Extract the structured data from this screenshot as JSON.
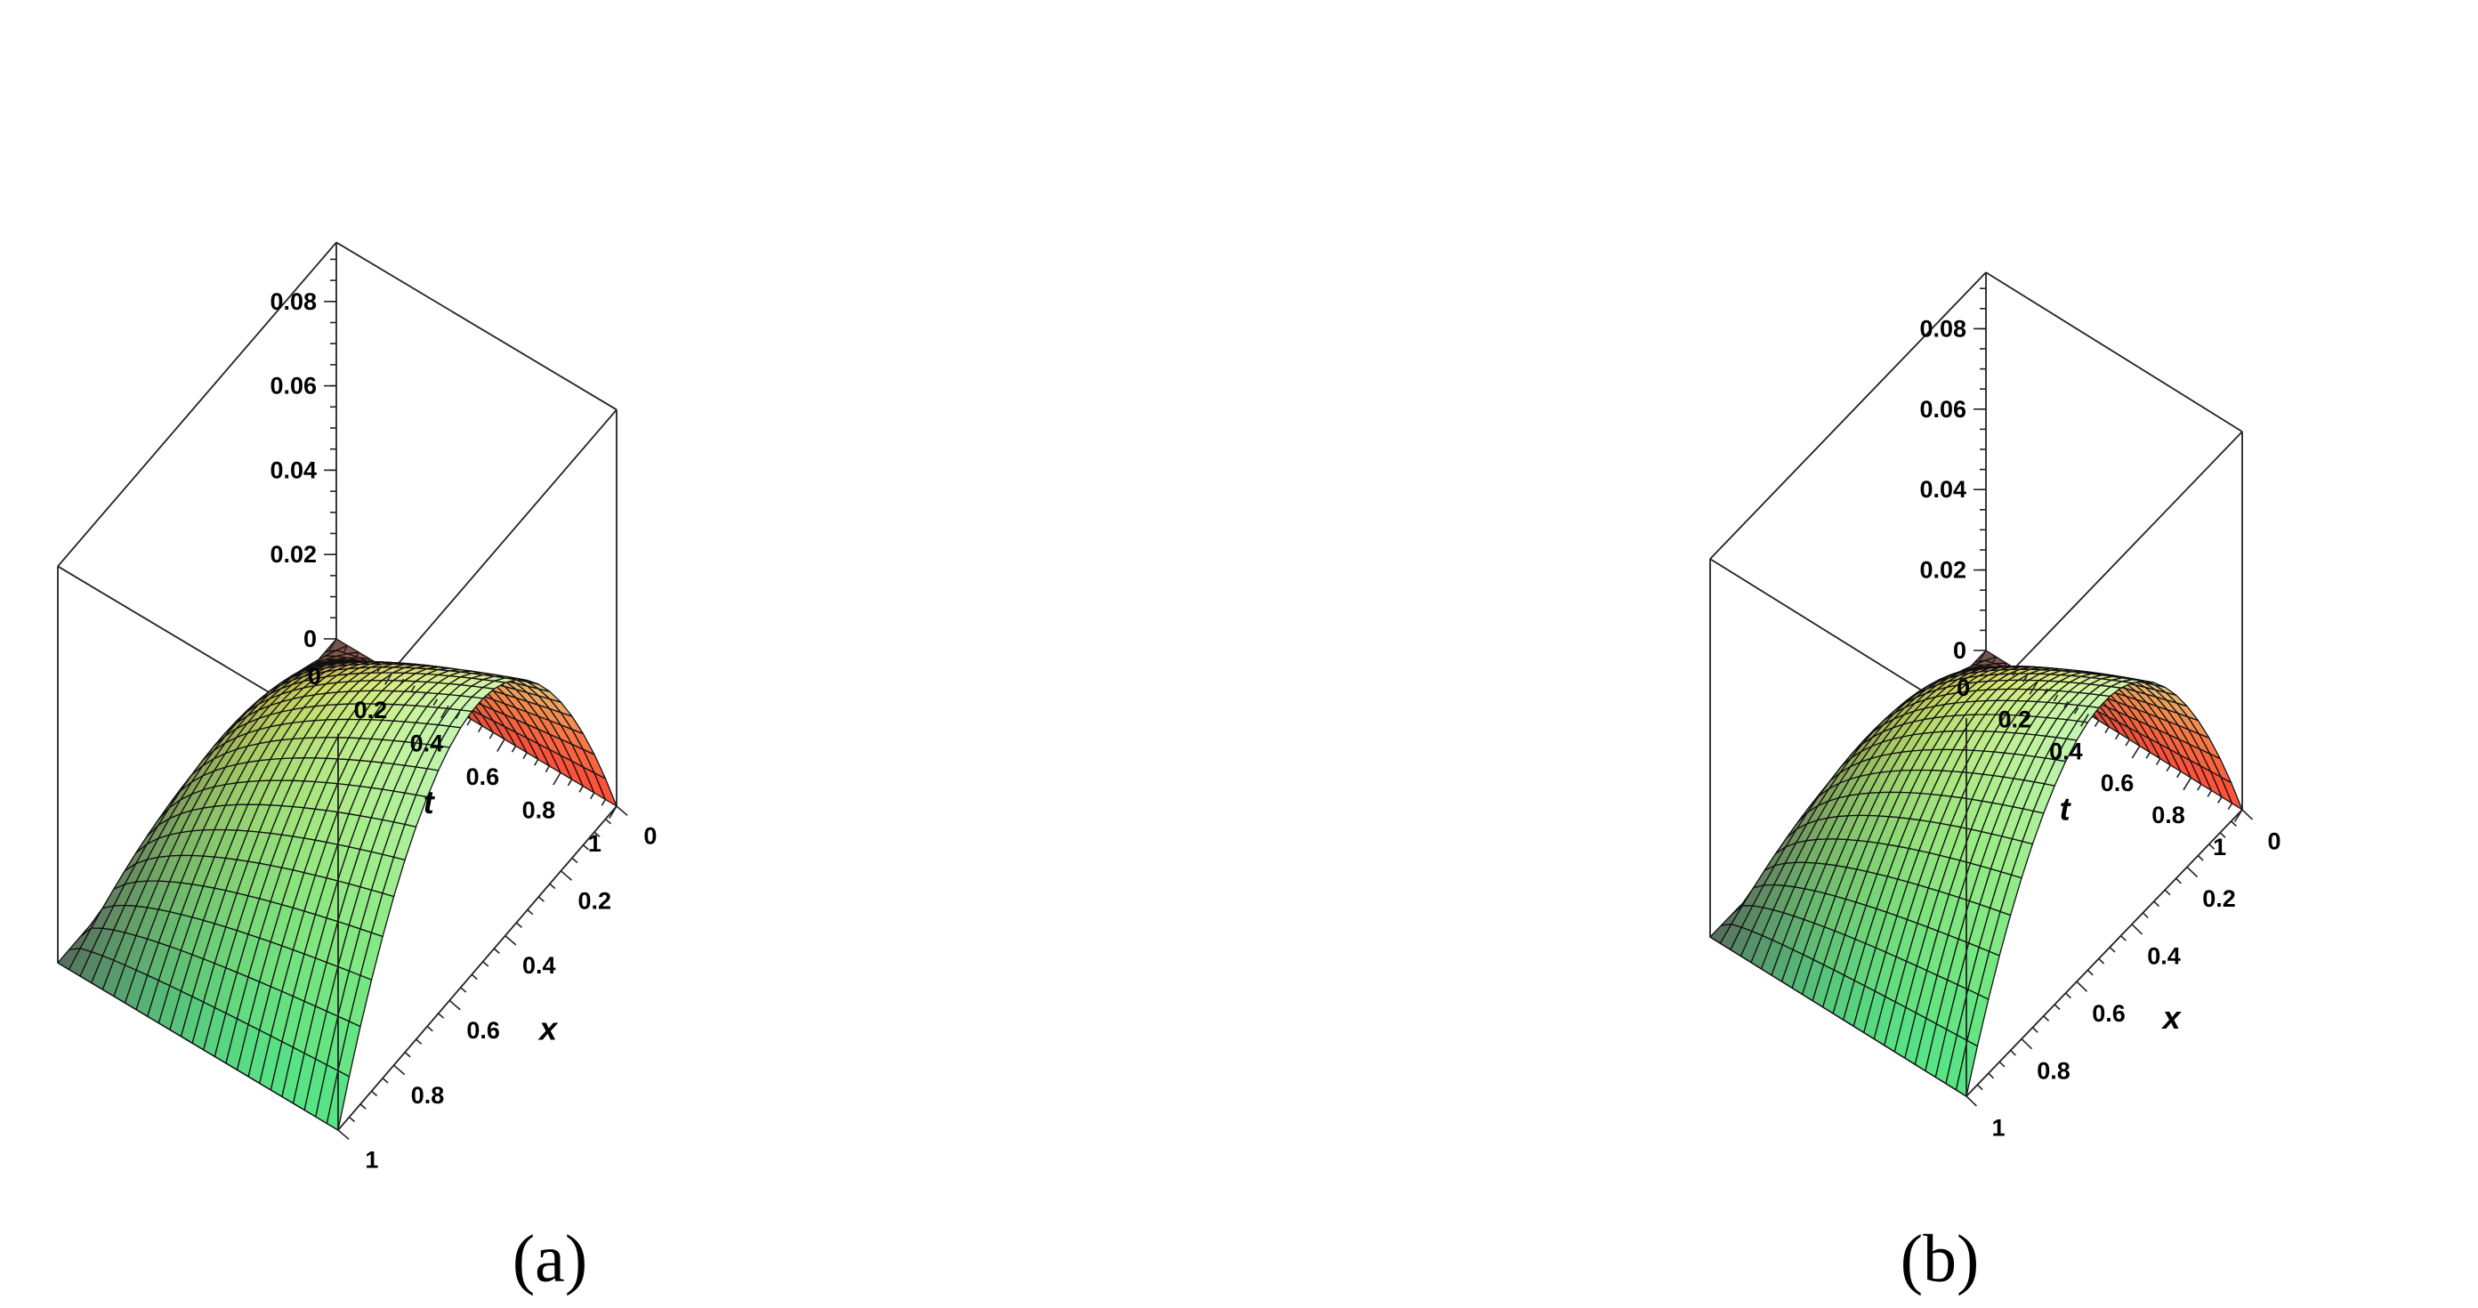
{
  "chart_data": [
    {
      "type": "surface",
      "caption": "(a)",
      "function": "approximate surface u(x,t)",
      "x_label": "x",
      "t_label": "t",
      "x_ticks": [
        "0",
        "0.2",
        "0.4",
        "0.6",
        "0.8",
        "1"
      ],
      "t_ticks": [
        "0",
        "0.2",
        "0.4",
        "0.6",
        "0.8",
        "1"
      ],
      "z_ticks": [
        "0",
        "0.02",
        "0.04",
        "0.06",
        "0.08"
      ],
      "x_range": [
        0,
        1
      ],
      "t_range": [
        0,
        1
      ],
      "z_range": [
        0,
        0.094
      ],
      "grid": [
        25,
        25
      ],
      "surface_peak": 0.0625
    },
    {
      "type": "surface",
      "caption": "(b)",
      "function": "approximate surface u(x,t)",
      "x_label": "x",
      "t_label": "t",
      "x_ticks": [
        "0",
        "0.2",
        "0.4",
        "0.6",
        "0.8",
        "1"
      ],
      "t_ticks": [
        "0",
        "0.2",
        "0.4",
        "0.6",
        "0.8",
        "1"
      ],
      "z_ticks": [
        "0",
        "0.02",
        "0.04",
        "0.06",
        "0.08"
      ],
      "x_range": [
        0,
        1
      ],
      "t_range": [
        0,
        1
      ],
      "z_range": [
        0,
        0.094
      ],
      "grid": [
        25,
        25
      ],
      "surface_peak": 0.0625
    }
  ],
  "colors": {
    "surface_low": "#ff4a3a",
    "surface_mid": "#f2ee38",
    "surface_high": "#52e488",
    "surface_peak": "#bdfcf3",
    "surface_shadow": "#565656",
    "mesh_line": "#111111",
    "box_line": "#222222",
    "background": "#ffffff"
  }
}
